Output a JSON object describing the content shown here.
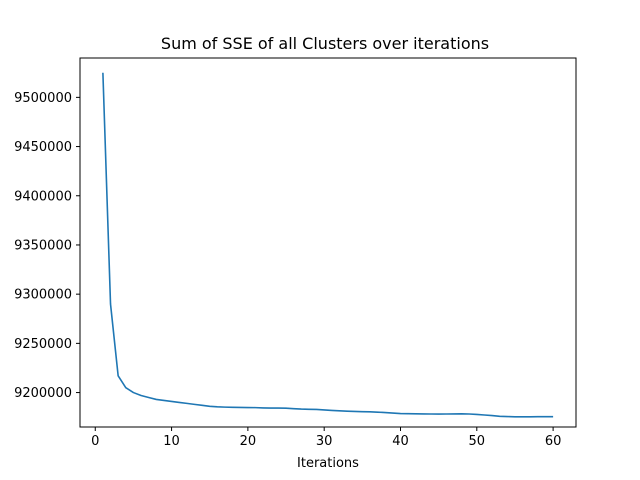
{
  "chart_data": {
    "type": "line",
    "title": "Sum of SSE of all Clusters over iterations",
    "xlabel": "Iterations",
    "ylabel": "",
    "xlim": [
      -2,
      63
    ],
    "ylim": [
      9165000,
      9540000
    ],
    "x_ticks": [
      0,
      10,
      20,
      30,
      40,
      50,
      60
    ],
    "y_ticks": [
      9200000,
      9250000,
      9300000,
      9350000,
      9400000,
      9450000,
      9500000
    ],
    "grid": false,
    "series": [
      {
        "color": "#1f77b4",
        "x": [
          1,
          2,
          3,
          4,
          5,
          6,
          7,
          8,
          9,
          10,
          11,
          12,
          13,
          14,
          15,
          16,
          17,
          18,
          19,
          20,
          21,
          22,
          23,
          24,
          25,
          26,
          27,
          28,
          29,
          30,
          31,
          32,
          33,
          34,
          35,
          36,
          37,
          38,
          39,
          40,
          41,
          42,
          43,
          44,
          45,
          46,
          47,
          48,
          49,
          50,
          51,
          52,
          53,
          54,
          55,
          56,
          57,
          58,
          59,
          60
        ],
        "values": [
          9525000,
          9290000,
          9217000,
          9205000,
          9200000,
          9197000,
          9195000,
          9193000,
          9192000,
          9191000,
          9190000,
          9189000,
          9188000,
          9187000,
          9186000,
          9185500,
          9185200,
          9185000,
          9184900,
          9184800,
          9184700,
          9184400,
          9184200,
          9184200,
          9184100,
          9183600,
          9183200,
          9183000,
          9182800,
          9182300,
          9181800,
          9181400,
          9181100,
          9180800,
          9180600,
          9180400,
          9180100,
          9179700,
          9179200,
          9178700,
          9178500,
          9178400,
          9178300,
          9178200,
          9178100,
          9178200,
          9178300,
          9178400,
          9178200,
          9177800,
          9177200,
          9176600,
          9175900,
          9175600,
          9175400,
          9175400,
          9175400,
          9175500,
          9175500,
          9175500
        ]
      }
    ]
  }
}
